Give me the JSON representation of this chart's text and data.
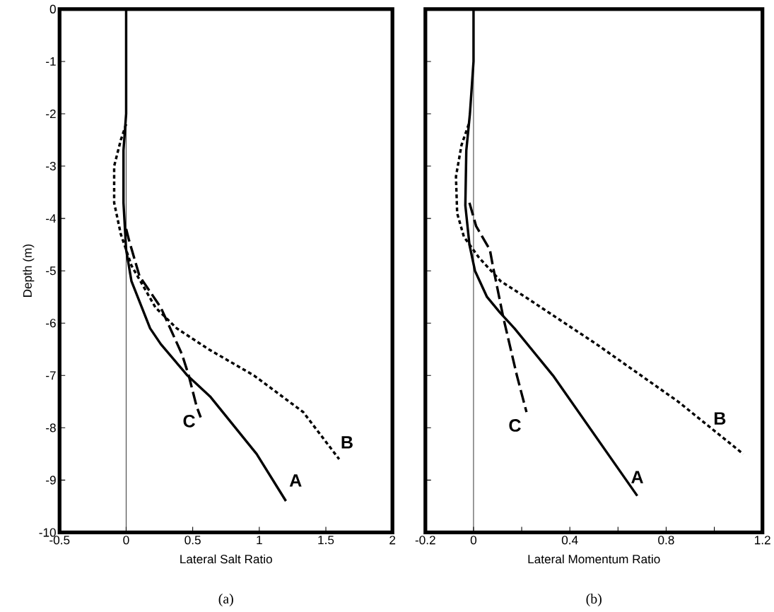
{
  "chart_data": [
    {
      "type": "line",
      "xlabel": "Lateral Salt Ratio",
      "ylabel": "Depth (m)",
      "annotations": [
        "(a)"
      ],
      "xlim": [
        -0.5,
        2
      ],
      "ylim": [
        -10,
        0
      ],
      "xticks": [
        -0.5,
        0,
        0.5,
        1,
        1.5,
        2
      ],
      "yticks": [
        -10,
        -9,
        -8,
        -7,
        -6,
        -5,
        -4,
        -3,
        -2,
        -1,
        0
      ],
      "ref_lines": [
        {
          "axis": "x",
          "value": 0
        }
      ],
      "series": [
        {
          "name": "A",
          "color": "#000000",
          "line_style": "solid",
          "x": [
            0,
            0,
            -0.02,
            -0.02,
            0,
            0.04,
            0.18,
            0.26,
            0.46,
            0.63,
            0.98,
            1.2
          ],
          "values": [
            0,
            -2,
            -2.7,
            -3.7,
            -4.6,
            -5.2,
            -6.1,
            -6.4,
            -7.0,
            -7.4,
            -8.5,
            -9.4
          ]
        },
        {
          "name": "B",
          "color": "#000000",
          "line_style": "dotted",
          "x": [
            0,
            -0.04,
            -0.09,
            -0.09,
            -0.04,
            0.04,
            0.22,
            0.38,
            0.62,
            0.96,
            1.33,
            1.45,
            1.6
          ],
          "values": [
            -2.2,
            -2.5,
            -3.0,
            -3.7,
            -4.3,
            -4.9,
            -5.7,
            -6.1,
            -6.5,
            -7.0,
            -7.7,
            -8.1,
            -8.6
          ]
        },
        {
          "name": "C",
          "color": "#000000",
          "line_style": "dashed",
          "x": [
            0,
            0.02,
            0.1,
            0.26,
            0.42,
            0.47,
            0.53,
            0.56
          ],
          "values": [
            -4.2,
            -4.4,
            -5.1,
            -5.7,
            -6.6,
            -7.0,
            -7.6,
            -7.8
          ]
        }
      ]
    },
    {
      "type": "line",
      "xlabel": "Lateral Momentum Ratio",
      "annotations": [
        "(b)"
      ],
      "xlim": [
        -0.2,
        1.2
      ],
      "ylim": [
        -10,
        0
      ],
      "tick_labels": "x",
      "xticks": [
        -0.2,
        0,
        {
          "value": 0.2,
          "label": null
        },
        0.4,
        {
          "value": 0.6,
          "label": null
        },
        0.8,
        {
          "value": 1.0,
          "label": null
        },
        1.2
      ],
      "yticks": [
        {
          "value": -10,
          "label": null
        },
        {
          "value": -9,
          "label": null
        },
        {
          "value": -8,
          "label": null
        },
        {
          "value": -7,
          "label": null
        },
        {
          "value": -6,
          "label": null
        },
        {
          "value": -5,
          "label": null
        },
        {
          "value": -4,
          "label": null
        },
        {
          "value": -3,
          "label": null
        },
        {
          "value": -2,
          "label": null
        },
        {
          "value": -1,
          "label": null
        },
        {
          "value": 0,
          "label": null
        }
      ],
      "ref_lines": [
        {
          "axis": "x",
          "value": 0
        }
      ],
      "series": [
        {
          "name": "A",
          "color": "#000000",
          "line_style": "solid",
          "x": [
            0,
            0,
            -0.015,
            -0.03,
            -0.034,
            -0.017,
            0.006,
            0.056,
            0.11,
            0.17,
            0.33,
            0.68
          ],
          "values": [
            0,
            -1,
            -2,
            -2.7,
            -3.75,
            -4.5,
            -5.0,
            -5.5,
            -5.8,
            -6.1,
            -7.0,
            -9.3
          ]
        },
        {
          "name": "B",
          "color": "#000000",
          "line_style": "dotted",
          "x": [
            -0.02,
            -0.05,
            -0.073,
            -0.068,
            -0.04,
            0.023,
            0.113,
            0.215,
            0.51,
            0.85,
            1.12
          ],
          "values": [
            -2.2,
            -2.6,
            -3.2,
            -3.9,
            -4.35,
            -4.75,
            -5.2,
            -5.5,
            -6.4,
            -7.5,
            -8.5
          ]
        },
        {
          "name": "C",
          "color": "#000000",
          "line_style": "dashed",
          "x": [
            -0.017,
            0.011,
            0.068,
            0.08,
            0.124,
            0.18,
            0.22
          ],
          "values": [
            -3.7,
            -4.15,
            -4.6,
            -4.9,
            -5.9,
            -7.0,
            -7.7
          ]
        }
      ]
    }
  ]
}
